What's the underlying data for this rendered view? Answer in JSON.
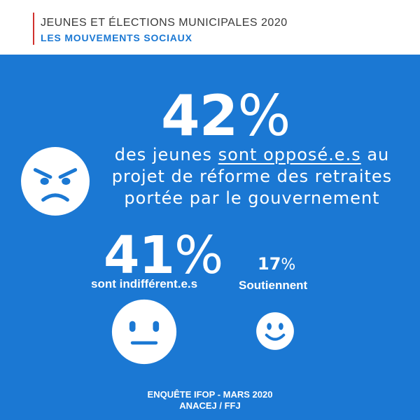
{
  "header": {
    "title": "JEUNES ET ÉLECTIONS MUNICIPALES 2020",
    "subtitle": "LES MOUVEMENTS SOCIAUX",
    "accent_color": "#d0312d",
    "brand_color": "#1b78d3"
  },
  "stat_main": {
    "value": "42",
    "unit": "%",
    "text_before": "des jeunes ",
    "text_emphasis": "sont opposé.e.s",
    "text_after_1": " au",
    "text_line2": "projet de réforme des retraites",
    "text_line3": "portée par le gouvernement",
    "icon": "angry-face-icon"
  },
  "stat_indifferent": {
    "value": "41",
    "unit": "%",
    "label": "sont indifférent.e.s",
    "icon": "neutral-face-icon"
  },
  "stat_support": {
    "value": "17",
    "unit": "%",
    "label": "Soutiennent",
    "icon": "smile-face-icon"
  },
  "footer": {
    "line1": "ENQUÊTE IFOP - MARS 2020",
    "line2": "ANACEJ / FFJ"
  }
}
